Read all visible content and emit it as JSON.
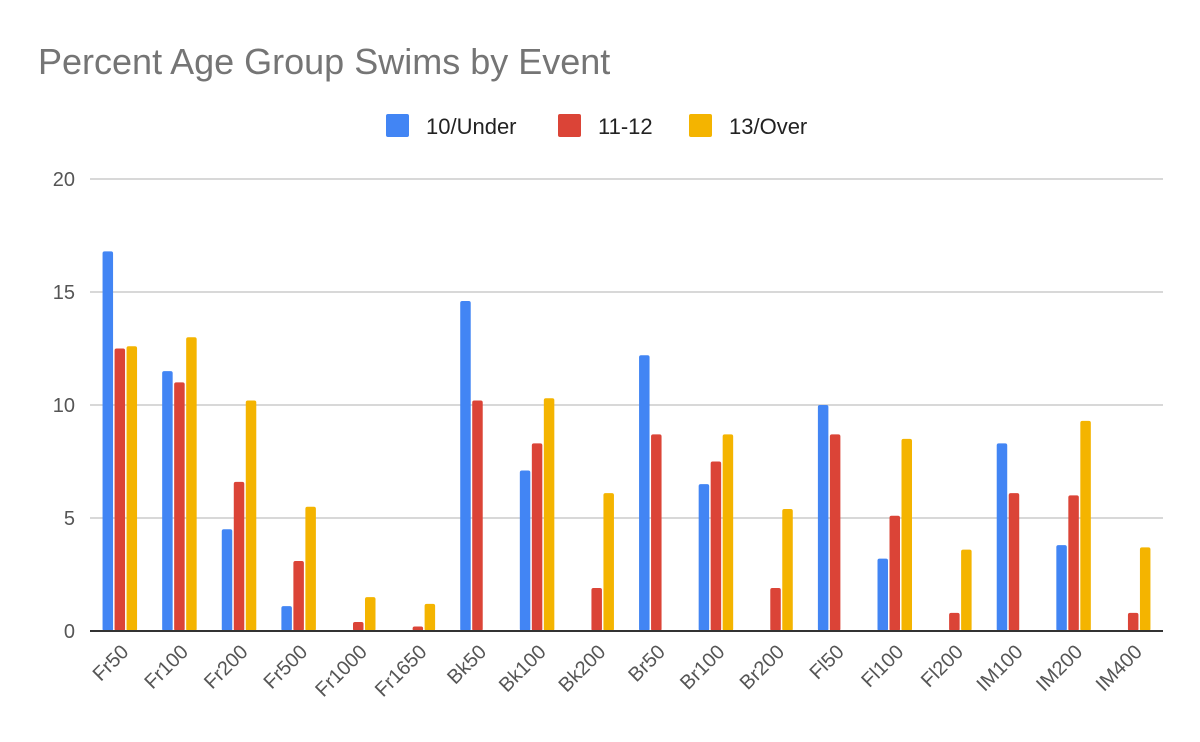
{
  "chart_data": {
    "type": "bar",
    "title": "Percent Age Group Swims by Event",
    "xlabel": "",
    "ylabel": "",
    "ylim": [
      0,
      20
    ],
    "yticks": [
      0,
      5,
      10,
      15,
      20
    ],
    "grid": true,
    "legend_position": "top-center",
    "categories": [
      "Fr50",
      "Fr100",
      "Fr200",
      "Fr500",
      "Fr1000",
      "Fr1650",
      "Bk50",
      "Bk100",
      "Bk200",
      "Br50",
      "Br100",
      "Br200",
      "Fl50",
      "Fl100",
      "Fl200",
      "IM100",
      "IM200",
      "IM400"
    ],
    "series": [
      {
        "name": "10/Under",
        "color": "#4285F4",
        "values": [
          16.8,
          11.5,
          4.5,
          1.1,
          0,
          0,
          14.6,
          7.1,
          0,
          12.2,
          6.5,
          0,
          10.0,
          3.2,
          0,
          8.3,
          3.8,
          0
        ]
      },
      {
        "name": "11-12",
        "color": "#DB4437",
        "values": [
          12.5,
          11.0,
          6.6,
          3.1,
          0.4,
          0.2,
          10.2,
          8.3,
          1.9,
          8.7,
          7.5,
          1.9,
          8.7,
          5.1,
          0.8,
          6.1,
          6.0,
          0.8
        ]
      },
      {
        "name": "13/Over",
        "color": "#F4B400",
        "values": [
          12.6,
          13.0,
          10.2,
          5.5,
          1.5,
          1.2,
          0,
          10.3,
          6.1,
          0,
          8.7,
          5.4,
          0,
          8.5,
          3.6,
          0,
          9.3,
          3.7
        ]
      }
    ]
  }
}
